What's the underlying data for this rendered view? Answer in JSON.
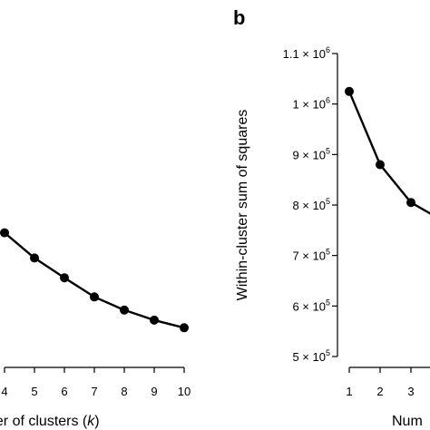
{
  "figure": {
    "panels": [
      {
        "letter": "b"
      }
    ]
  },
  "chart_data": [
    {
      "type": "line",
      "xlabel_visible": "ber of clusters (k)",
      "x": [
        4,
        5,
        6,
        7,
        8,
        9,
        10
      ],
      "series": [
        {
          "values": [
            745000.0,
            695000.0,
            656000.0,
            618000.0,
            592000.0,
            572000.0,
            557000.0
          ]
        }
      ],
      "x_ticks": [
        "4",
        "5",
        "6",
        "7",
        "8",
        "9",
        "10"
      ],
      "ylim": [
        475000.0,
        1100000.0
      ],
      "color": "#000000"
    },
    {
      "type": "line",
      "panel": "b",
      "ylabel": "Within-cluster sum of squares",
      "xlabel_visible": "Num",
      "x": [
        1,
        2,
        3,
        4
      ],
      "series": [
        {
          "values": [
            1025000.0,
            880000.0,
            805000.0,
            770000.0
          ]
        }
      ],
      "x_ticks": [
        "1",
        "2",
        "3"
      ],
      "y_ticks": [
        {
          "value": 1100000.0,
          "mantissa": "1.1",
          "times": "×",
          "base": "10",
          "exp": "6"
        },
        {
          "value": 1000000.0,
          "mantissa": "1",
          "times": "×",
          "base": "10",
          "exp": "6"
        },
        {
          "value": 900000.0,
          "mantissa": "9",
          "times": "×",
          "base": "10",
          "exp": "5"
        },
        {
          "value": 800000.0,
          "mantissa": "8",
          "times": "×",
          "base": "10",
          "exp": "5"
        },
        {
          "value": 700000.0,
          "mantissa": "7",
          "times": "×",
          "base": "10",
          "exp": "5"
        },
        {
          "value": 600000.0,
          "mantissa": "6",
          "times": "×",
          "base": "10",
          "exp": "5"
        },
        {
          "value": 500000.0,
          "mantissa": "5",
          "times": "×",
          "base": "10",
          "exp": "5"
        }
      ],
      "ylim": [
        475000.0,
        1100000.0
      ],
      "color": "#000000"
    }
  ]
}
